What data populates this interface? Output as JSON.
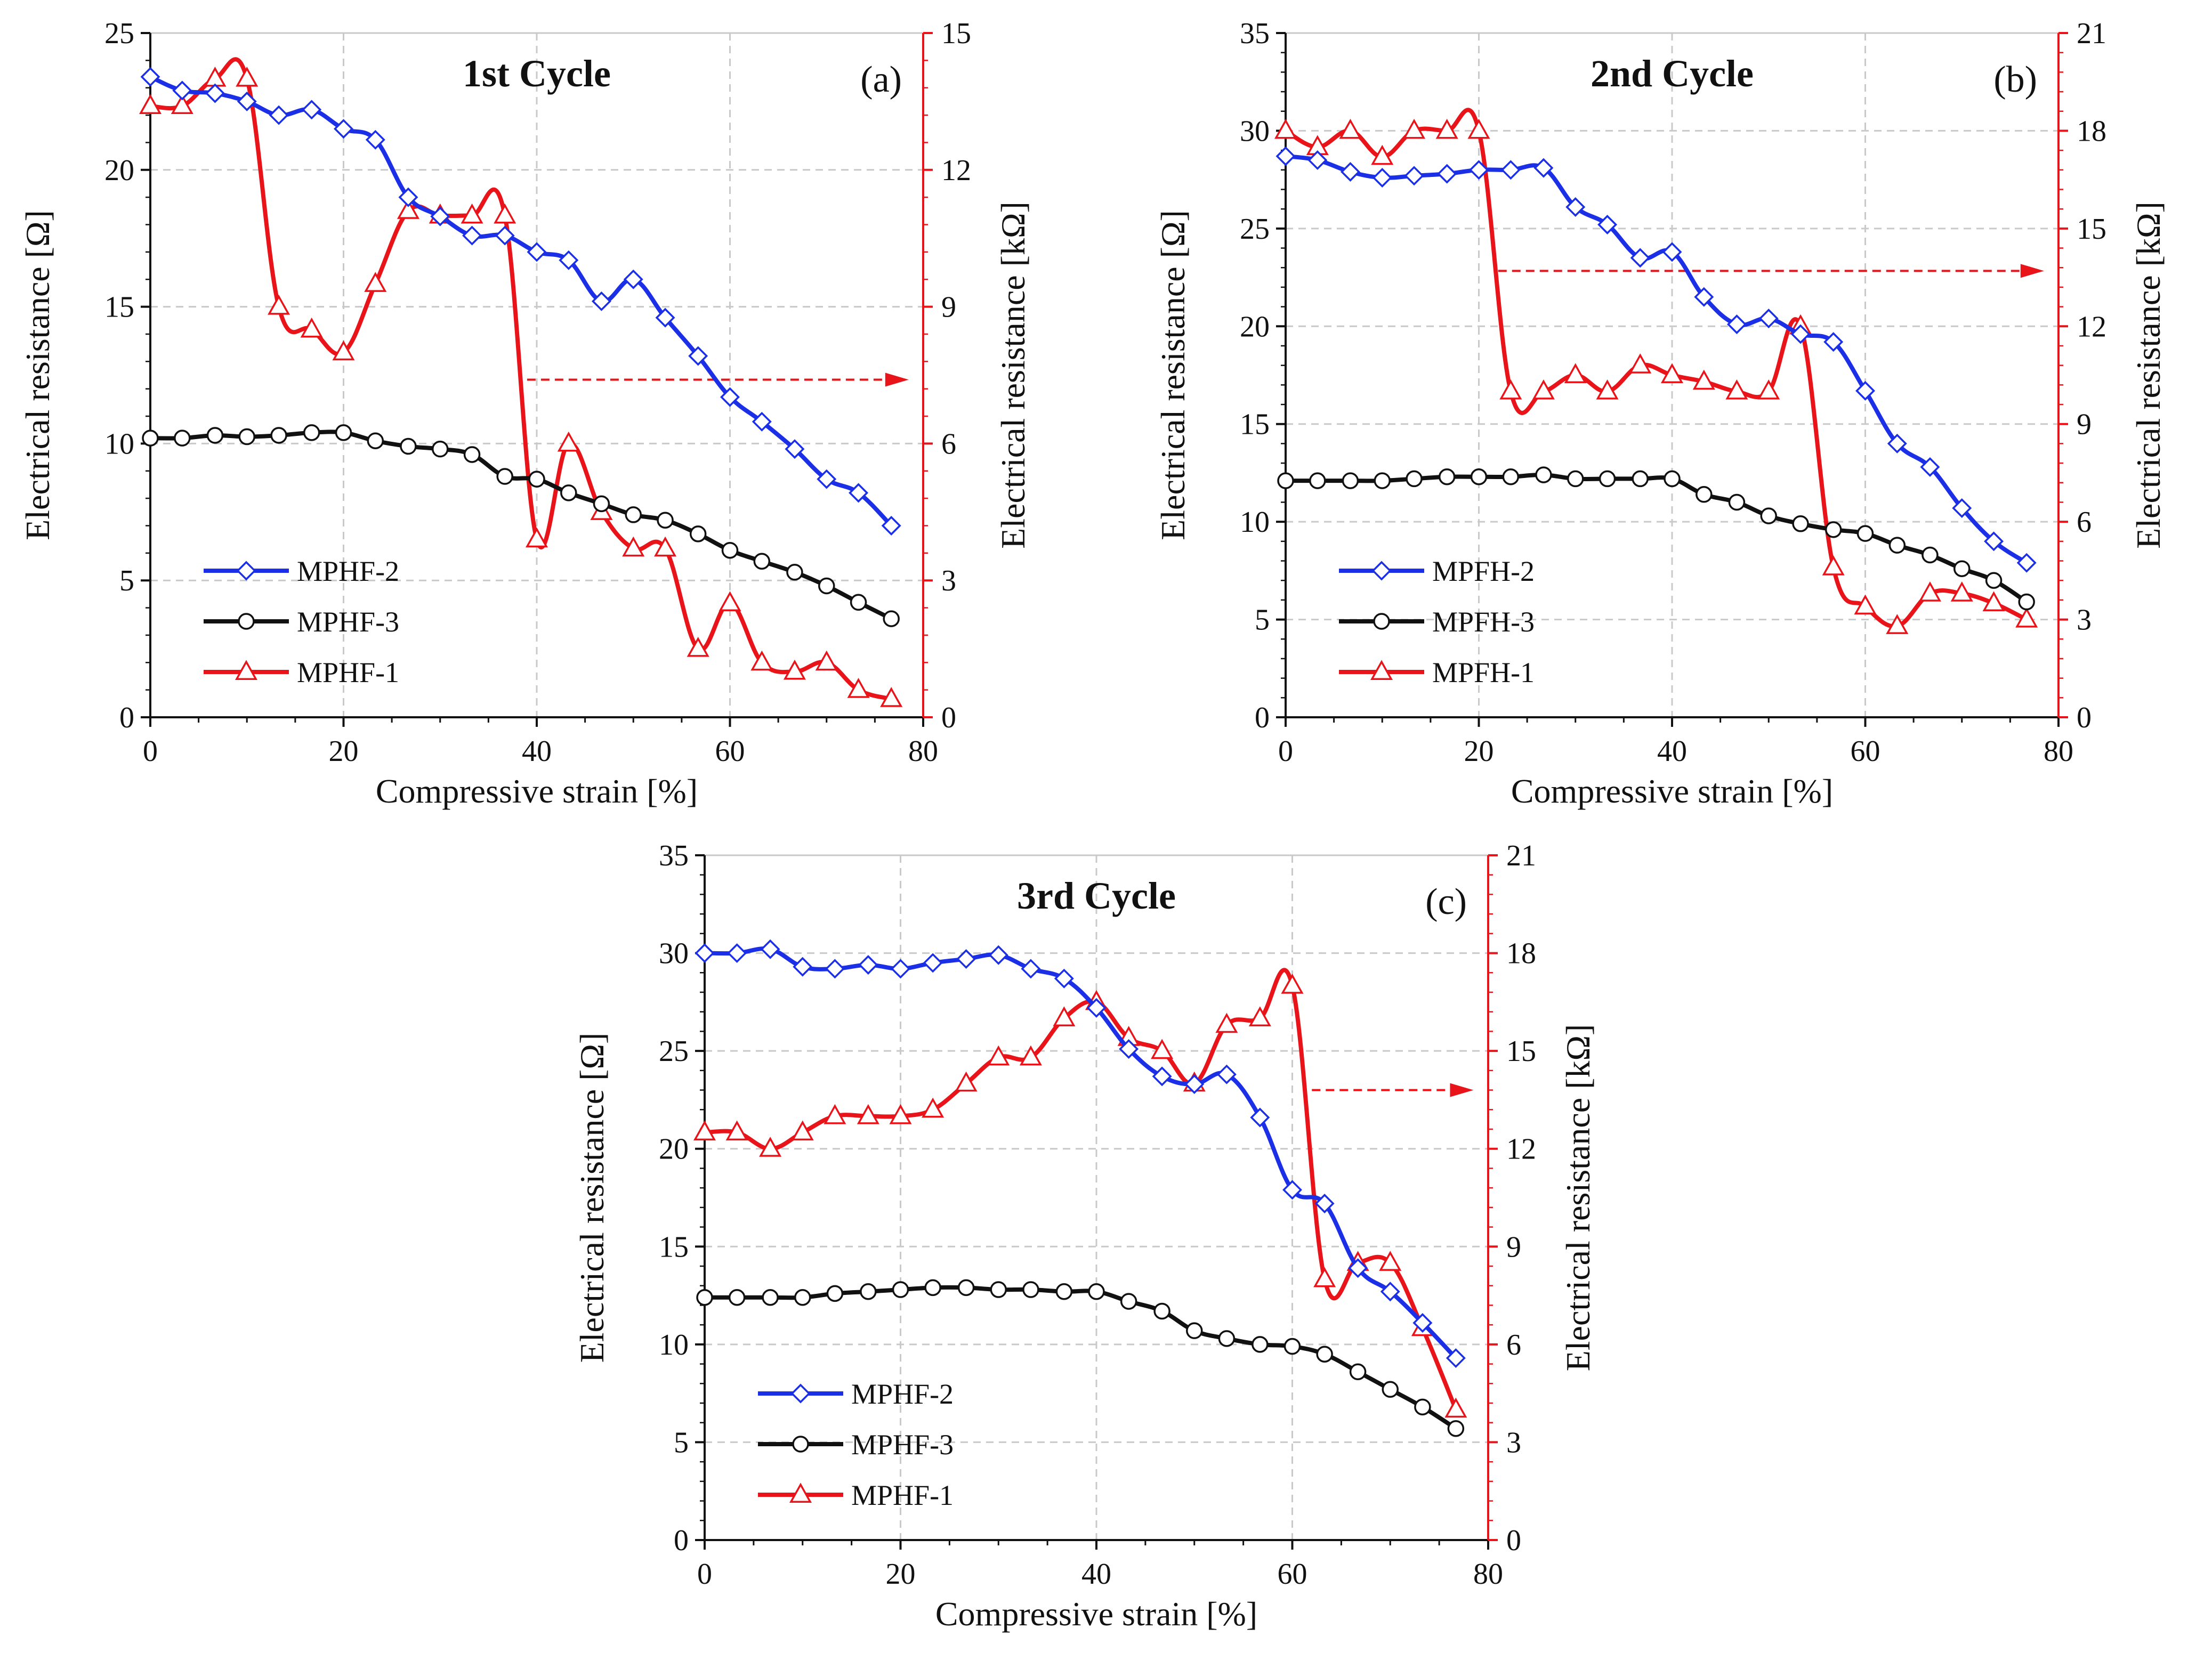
{
  "figure": {
    "description_labels": [
      "(a)",
      "(b)",
      "(c)"
    ]
  },
  "chart_data": [
    {
      "type": "line",
      "panel_label": "(a)",
      "title": "1st Cycle",
      "xlabel": "Compressive strain [%]",
      "ylabel": "Electrical resistance [Ω]",
      "y2label": "Electrical resistance [kΩ]",
      "xlim": [
        0,
        80
      ],
      "ylim": [
        0,
        25
      ],
      "y2lim": [
        0,
        15
      ],
      "xticks": [
        0,
        20,
        40,
        60,
        80
      ],
      "yticks": [
        0,
        5,
        10,
        15,
        20,
        25
      ],
      "y2ticks": [
        0,
        3,
        6,
        9,
        12,
        15
      ],
      "grid": true,
      "legend_position": "bottom-left",
      "arrow": {
        "from_x": 39,
        "to_x": 78.5,
        "y2": 7.4,
        "direction": "right",
        "color": "#e8141a"
      },
      "series": [
        {
          "name": "MPHF-2",
          "color": "#1a2fe6",
          "marker": "diamond",
          "axis": "left",
          "x": [
            0,
            3.3,
            6.7,
            10,
            13.3,
            16.7,
            20,
            23.3,
            26.7,
            30,
            33.3,
            36.7,
            40,
            43.3,
            46.7,
            50,
            53.3,
            56.7,
            60,
            63.3,
            66.7,
            70,
            73.3,
            76.7
          ],
          "y": [
            23.4,
            22.9,
            22.8,
            22.5,
            22.0,
            22.2,
            21.5,
            21.1,
            19.0,
            18.3,
            17.6,
            17.6,
            17.0,
            16.7,
            15.2,
            16.0,
            14.6,
            13.2,
            11.7,
            10.8,
            9.8,
            8.7,
            8.2,
            7.0
          ]
        },
        {
          "name": "MPHF-3",
          "color": "#111111",
          "marker": "circle",
          "axis": "left",
          "x": [
            0,
            3.3,
            6.7,
            10,
            13.3,
            16.7,
            20,
            23.3,
            26.7,
            30,
            33.3,
            36.7,
            40,
            43.3,
            46.7,
            50,
            53.3,
            56.7,
            60,
            63.3,
            66.7,
            70,
            73.3,
            76.7
          ],
          "y": [
            10.2,
            10.2,
            10.3,
            10.25,
            10.3,
            10.4,
            10.4,
            10.1,
            9.9,
            9.8,
            9.6,
            8.8,
            8.7,
            8.2,
            7.8,
            7.4,
            7.2,
            6.7,
            6.1,
            5.7,
            5.3,
            4.8,
            4.2,
            3.6
          ]
        },
        {
          "name": "MPHF-1",
          "color": "#e8141a",
          "marker": "triangle",
          "axis": "right",
          "x": [
            0,
            3.3,
            6.7,
            10,
            13.3,
            16.7,
            20,
            23.3,
            26.7,
            30,
            33.3,
            36.7,
            40,
            43.3,
            46.7,
            50,
            53.3,
            56.7,
            60,
            63.3,
            66.7,
            70,
            73.3,
            76.7
          ],
          "y": [
            13.4,
            13.4,
            14.0,
            14.0,
            9.0,
            8.5,
            8.0,
            9.5,
            11.1,
            11.0,
            11.0,
            11.0,
            3.9,
            6.0,
            4.5,
            3.7,
            3.7,
            1.5,
            2.5,
            1.2,
            1.0,
            1.2,
            0.6,
            0.4
          ]
        }
      ]
    },
    {
      "type": "line",
      "panel_label": "(b)",
      "title": "2nd Cycle",
      "xlabel": "Compressive strain [%]",
      "ylabel": "Electrical resistance [Ω]",
      "y2label": "Electrical resistance [kΩ]",
      "xlim": [
        0,
        80
      ],
      "ylim": [
        0,
        35
      ],
      "y2lim": [
        0,
        21
      ],
      "xticks": [
        0,
        20,
        40,
        60,
        80
      ],
      "yticks": [
        0,
        5,
        10,
        15,
        20,
        25,
        30,
        35
      ],
      "y2ticks": [
        0,
        3,
        6,
        9,
        12,
        15,
        18,
        21
      ],
      "grid": true,
      "legend_position": "bottom-left",
      "arrow": {
        "from_x": 22,
        "to_x": 78.5,
        "y2": 13.7,
        "direction": "right",
        "color": "#e8141a"
      },
      "series": [
        {
          "name": "MPFH-2",
          "color": "#1a2fe6",
          "marker": "diamond",
          "axis": "left",
          "x": [
            0,
            3.3,
            6.7,
            10,
            13.3,
            16.7,
            20,
            23.3,
            26.7,
            30,
            33.3,
            36.7,
            40,
            43.3,
            46.7,
            50,
            53.3,
            56.7,
            60,
            63.3,
            66.7,
            70,
            73.3,
            76.7
          ],
          "y": [
            28.7,
            28.5,
            27.9,
            27.6,
            27.7,
            27.8,
            28.0,
            28.0,
            28.1,
            26.1,
            25.2,
            23.5,
            23.8,
            21.5,
            20.1,
            20.4,
            19.6,
            19.2,
            16.7,
            14.0,
            12.8,
            10.7,
            9.0,
            7.9
          ]
        },
        {
          "name": "MPFH-3",
          "color": "#111111",
          "marker": "circle",
          "axis": "left",
          "x": [
            0,
            3.3,
            6.7,
            10,
            13.3,
            16.7,
            20,
            23.3,
            26.7,
            30,
            33.3,
            36.7,
            40,
            43.3,
            46.7,
            50,
            53.3,
            56.7,
            60,
            63.3,
            66.7,
            70,
            73.3,
            76.7
          ],
          "y": [
            12.1,
            12.1,
            12.1,
            12.1,
            12.2,
            12.3,
            12.3,
            12.3,
            12.4,
            12.2,
            12.2,
            12.2,
            12.2,
            11.4,
            11.0,
            10.3,
            9.9,
            9.6,
            9.4,
            8.8,
            8.3,
            7.6,
            7.0,
            5.9
          ]
        },
        {
          "name": "MPFH-1",
          "color": "#e8141a",
          "marker": "triangle",
          "axis": "right",
          "x": [
            0,
            3.3,
            6.7,
            10,
            13.3,
            16.7,
            20,
            23.3,
            26.7,
            30,
            33.3,
            36.7,
            40,
            43.3,
            46.7,
            50,
            53.3,
            56.7,
            60,
            63.3,
            66.7,
            70,
            73.3,
            76.7
          ],
          "y": [
            18.0,
            17.5,
            18.0,
            17.2,
            18.0,
            18.0,
            18.0,
            10.0,
            10.0,
            10.5,
            10.0,
            10.8,
            10.5,
            10.3,
            10.0,
            10.0,
            12.0,
            4.6,
            3.4,
            2.8,
            3.8,
            3.8,
            3.5,
            3.0
          ]
        }
      ]
    },
    {
      "type": "line",
      "panel_label": "(c)",
      "title": "3rd Cycle",
      "xlabel": "Compressive strain [%]",
      "ylabel": "Electrical resistance [Ω]",
      "y2label": "Electrical resistance [kΩ]",
      "xlim": [
        0,
        80
      ],
      "ylim": [
        0,
        35
      ],
      "y2lim": [
        0,
        21
      ],
      "xticks": [
        0,
        20,
        40,
        60,
        80
      ],
      "yticks": [
        0,
        5,
        10,
        15,
        20,
        25,
        30,
        35
      ],
      "y2ticks": [
        0,
        3,
        6,
        9,
        12,
        15,
        18,
        21
      ],
      "grid": true,
      "legend_position": "bottom-left",
      "arrow": {
        "from_x": 62,
        "to_x": 78.5,
        "y2": 13.8,
        "direction": "right",
        "color": "#e8141a"
      },
      "series": [
        {
          "name": "MPHF-2",
          "color": "#1a2fe6",
          "marker": "diamond",
          "axis": "left",
          "x": [
            0,
            3.3,
            6.7,
            10,
            13.3,
            16.7,
            20,
            23.3,
            26.7,
            30,
            33.3,
            36.7,
            40,
            43.3,
            46.7,
            50,
            53.3,
            56.7,
            60,
            63.3,
            66.7,
            70,
            73.3,
            76.7
          ],
          "y": [
            30.0,
            30.0,
            30.2,
            29.3,
            29.2,
            29.4,
            29.2,
            29.5,
            29.7,
            29.9,
            29.2,
            28.7,
            27.2,
            25.1,
            23.7,
            23.3,
            23.8,
            21.6,
            17.9,
            17.2,
            13.9,
            12.7,
            11.1,
            9.3
          ]
        },
        {
          "name": "MPHF-3",
          "color": "#111111",
          "marker": "circle",
          "axis": "left",
          "x": [
            0,
            3.3,
            6.7,
            10,
            13.3,
            16.7,
            20,
            23.3,
            26.7,
            30,
            33.3,
            36.7,
            40,
            43.3,
            46.7,
            50,
            53.3,
            56.7,
            60,
            63.3,
            66.7,
            70,
            73.3,
            76.7
          ],
          "y": [
            12.4,
            12.4,
            12.4,
            12.4,
            12.6,
            12.7,
            12.8,
            12.9,
            12.9,
            12.8,
            12.8,
            12.7,
            12.7,
            12.2,
            11.7,
            10.7,
            10.3,
            10.0,
            9.9,
            9.5,
            8.6,
            7.7,
            6.8,
            5.7
          ]
        },
        {
          "name": "MPHF-1",
          "color": "#e8141a",
          "marker": "triangle",
          "axis": "right",
          "x": [
            0,
            3.3,
            6.7,
            10,
            13.3,
            16.7,
            20,
            23.3,
            26.7,
            30,
            33.3,
            36.7,
            40,
            43.3,
            46.7,
            50,
            53.3,
            56.7,
            60,
            63.3,
            66.7,
            70,
            73.3,
            76.7
          ],
          "y": [
            12.5,
            12.5,
            12.0,
            12.5,
            13.0,
            13.0,
            13.0,
            13.2,
            14.0,
            14.8,
            14.8,
            16.0,
            16.5,
            15.4,
            15.0,
            14.0,
            15.8,
            16.0,
            17.0,
            8.0,
            8.5,
            8.5,
            6.5,
            4.0
          ]
        }
      ]
    }
  ]
}
